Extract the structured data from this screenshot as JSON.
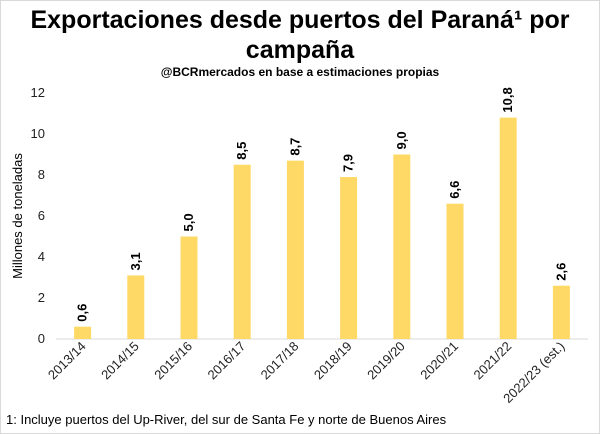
{
  "chart_data": {
    "type": "bar",
    "title_line1": "Exportaciones desde puertos del Paraná¹ por",
    "title_line2": "campaña",
    "subtitle": "@BCRmercados en base a estimaciones propias",
    "ylabel": "Millones de toneladas",
    "xlabel": "",
    "ylim": [
      0,
      12
    ],
    "yticks": [
      "0",
      "2",
      "4",
      "6",
      "8",
      "10",
      "12"
    ],
    "grid": false,
    "color": "#FFD966",
    "categories": [
      "2013/14",
      "2014/15",
      "2015/16",
      "2016/17",
      "2017/18",
      "2018/19",
      "2019/20",
      "2020/21",
      "2021/22",
      "2022/23 (est.)"
    ],
    "values": [
      0.6,
      3.1,
      5.0,
      8.5,
      8.7,
      7.9,
      9.0,
      6.6,
      10.8,
      2.6
    ],
    "value_labels": [
      "0,6",
      "3,1",
      "5,0",
      "8,5",
      "8,7",
      "7,9",
      "9,0",
      "6,6",
      "10,8",
      "2,6"
    ]
  },
  "footnote": "1: Incluye puertos del Up-River, del sur de Santa Fe y norte de Buenos Aires"
}
